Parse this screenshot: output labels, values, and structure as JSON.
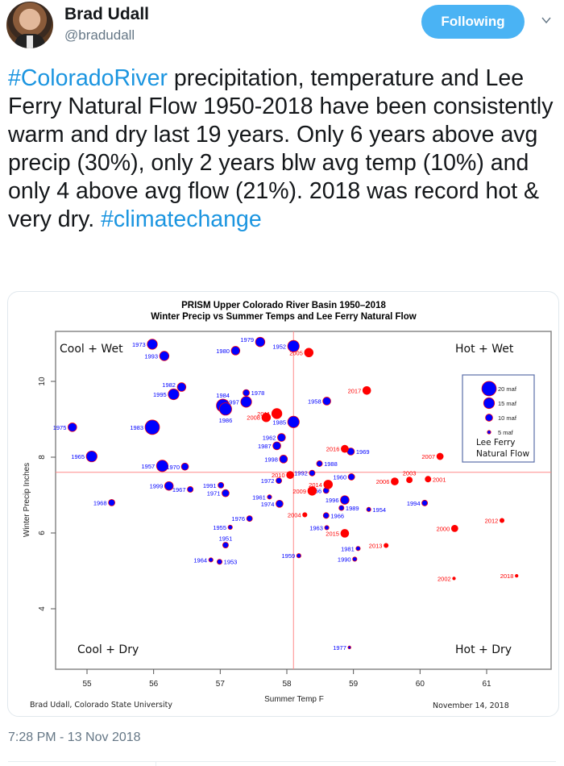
{
  "user": {
    "name": "Brad Udall",
    "handle": "@bradudall",
    "follow_button": "Following",
    "menu_icon": "chevron-down-icon"
  },
  "tweet": {
    "segments": [
      {
        "text": "#ColoradoRiver",
        "type": "hashtag"
      },
      {
        "text": " precipitation, temperature and Lee Ferry Natural Flow 1950-2018 have been consistently warm and dry last 19 years. Only 6 years above avg precip (30%), only 2 years blw avg temp (10%) and only 4 above avg flow (21%). 2018 was record hot & very dry.  ",
        "type": "text"
      },
      {
        "text": "#climatechange",
        "type": "hashtag"
      }
    ],
    "timestamp": "7:28 PM - 13 Nov 2018"
  },
  "colors": {
    "hashtag": "#1b95e0",
    "follow_bg": "#4ab3f4",
    "pre2000": "#0000ff",
    "post2000": "#ff0000",
    "mean_line": "#ff8a8a"
  },
  "chart_data": {
    "type": "scatter",
    "title": "PRISM  Upper Colorado River Basin 1950–2018",
    "subtitle": "Winter Precip vs Summer Temps and Lee Ferry Natural Flow",
    "xlabel": "Summer Temp F",
    "ylabel": "Winter Precip Inches",
    "xlim": [
      54.4,
      61.5
    ],
    "ylim": [
      3.15,
      11.2
    ],
    "xticks": [
      55,
      56,
      57,
      58,
      59,
      60,
      61
    ],
    "yticks": [
      4,
      6,
      8,
      10
    ],
    "mean_x": 58.1,
    "mean_y": 7.6,
    "grid": false,
    "quadrant_labels": {
      "top_left": "Cool + Wet",
      "top_right": "Hot + Wet",
      "bottom_left": "Cool + Dry",
      "bottom_right": "Hot + Dry"
    },
    "legend": {
      "placement": "right",
      "entries": [
        {
          "label": "20 maf",
          "flow": 20
        },
        {
          "label": "15 maf",
          "flow": 15
        },
        {
          "label": "10 maf",
          "flow": 10
        },
        {
          "label": "5 maf",
          "flow": 5
        }
      ],
      "caption_line1": "Lee Ferry",
      "caption_line2": "Natural Flow"
    },
    "footer_left": "Brad Udall, Colorado State University",
    "footer_right": "November 14, 2018",
    "series": [
      {
        "name": "1950-1999",
        "color": "#0000ff",
        "points": [
          {
            "year": "1973",
            "x": 55.98,
            "y": 10.98,
            "flow": 14,
            "label_side": "left"
          },
          {
            "year": "1993",
            "x": 56.16,
            "y": 10.67,
            "flow": 13,
            "label_side": "left"
          },
          {
            "year": "1980",
            "x": 57.23,
            "y": 10.81,
            "flow": 12,
            "label_side": "left"
          },
          {
            "year": "1979",
            "x": 57.6,
            "y": 11.04,
            "flow": 13,
            "label_side": "left-up"
          },
          {
            "year": "1952",
            "x": 58.1,
            "y": 10.93,
            "flow": 16,
            "label_side": "left"
          },
          {
            "year": "1982",
            "x": 56.42,
            "y": 9.85,
            "flow": 12,
            "label_side": "left-up"
          },
          {
            "year": "1995",
            "x": 56.3,
            "y": 9.66,
            "flow": 15,
            "label_side": "left"
          },
          {
            "year": "1978",
            "x": 57.39,
            "y": 9.7,
            "flow": 9,
            "label_side": "right"
          },
          {
            "year": "1997",
            "x": 57.39,
            "y": 9.46,
            "flow": 15,
            "label_side": "left"
          },
          {
            "year": "1984",
            "x": 57.04,
            "y": 9.36,
            "flow": 18,
            "label_side": "up"
          },
          {
            "year": "1986",
            "x": 57.08,
            "y": 9.27,
            "flow": 17,
            "label_side": "down"
          },
          {
            "year": "1958",
            "x": 58.6,
            "y": 9.48,
            "flow": 11,
            "label_side": "left"
          },
          {
            "year": "1985",
            "x": 58.1,
            "y": 8.93,
            "flow": 16,
            "label_side": "left"
          },
          {
            "year": "1975",
            "x": 54.78,
            "y": 8.79,
            "flow": 12,
            "label_side": "left"
          },
          {
            "year": "1983",
            "x": 55.98,
            "y": 8.79,
            "flow": 20,
            "label_side": "left"
          },
          {
            "year": "1962",
            "x": 57.92,
            "y": 8.52,
            "flow": 11,
            "label_side": "left"
          },
          {
            "year": "1987",
            "x": 57.85,
            "y": 8.3,
            "flow": 11,
            "label_side": "left"
          },
          {
            "year": "1998",
            "x": 57.95,
            "y": 7.95,
            "flow": 11,
            "label_side": "left"
          },
          {
            "year": "1969",
            "x": 58.96,
            "y": 8.15,
            "flow": 10,
            "label_side": "right"
          },
          {
            "year": "1988",
            "x": 58.49,
            "y": 7.83,
            "flow": 8,
            "label_side": "right"
          },
          {
            "year": "1965",
            "x": 55.07,
            "y": 8.02,
            "flow": 15,
            "label_side": "left"
          },
          {
            "year": "1957",
            "x": 56.13,
            "y": 7.77,
            "flow": 16,
            "label_side": "left"
          },
          {
            "year": "1970",
            "x": 56.47,
            "y": 7.75,
            "flow": 10,
            "label_side": "left"
          },
          {
            "year": "1992",
            "x": 58.38,
            "y": 7.58,
            "flow": 8,
            "label_side": "left"
          },
          {
            "year": "1960",
            "x": 58.97,
            "y": 7.48,
            "flow": 9,
            "label_side": "left"
          },
          {
            "year": "1972",
            "x": 57.88,
            "y": 7.38,
            "flow": 8,
            "label_side": "left"
          },
          {
            "year": "1991",
            "x": 57.01,
            "y": 7.26,
            "flow": 8,
            "label_side": "left"
          },
          {
            "year": "1999",
            "x": 56.23,
            "y": 7.24,
            "flow": 12,
            "label_side": "left"
          },
          {
            "year": "1967",
            "x": 56.55,
            "y": 7.15,
            "flow": 8,
            "label_side": "left"
          },
          {
            "year": "1971",
            "x": 57.08,
            "y": 7.05,
            "flow": 10,
            "label_side": "left"
          },
          {
            "year": "1956",
            "x": 58.59,
            "y": 7.12,
            "flow": 8,
            "label_side": "left"
          },
          {
            "year": "1961",
            "x": 57.74,
            "y": 6.95,
            "flow": 6,
            "label_side": "left"
          },
          {
            "year": "1996",
            "x": 58.87,
            "y": 6.87,
            "flow": 12,
            "label_side": "left"
          },
          {
            "year": "1994",
            "x": 60.07,
            "y": 6.79,
            "flow": 8,
            "label_side": "left"
          },
          {
            "year": "1968",
            "x": 55.37,
            "y": 6.8,
            "flow": 9,
            "label_side": "left"
          },
          {
            "year": "1974",
            "x": 57.89,
            "y": 6.77,
            "flow": 10,
            "label_side": "left"
          },
          {
            "year": "1989",
            "x": 58.82,
            "y": 6.66,
            "flow": 7,
            "label_side": "right"
          },
          {
            "year": "1954",
            "x": 59.23,
            "y": 6.62,
            "flow": 6,
            "label_side": "right"
          },
          {
            "year": "1966",
            "x": 58.59,
            "y": 6.46,
            "flow": 8,
            "label_side": "right"
          },
          {
            "year": "1976",
            "x": 57.44,
            "y": 6.38,
            "flow": 8,
            "label_side": "left"
          },
          {
            "year": "1963",
            "x": 58.6,
            "y": 6.14,
            "flow": 6,
            "label_side": "left"
          },
          {
            "year": "1955",
            "x": 57.15,
            "y": 6.15,
            "flow": 6,
            "label_side": "left"
          },
          {
            "year": "1951",
            "x": 57.08,
            "y": 5.68,
            "flow": 8,
            "label_side": "up"
          },
          {
            "year": "1981",
            "x": 59.07,
            "y": 5.59,
            "flow": 6,
            "label_side": "left"
          },
          {
            "year": "1959",
            "x": 58.18,
            "y": 5.4,
            "flow": 6,
            "label_side": "left"
          },
          {
            "year": "1990",
            "x": 59.02,
            "y": 5.31,
            "flow": 6,
            "label_side": "left"
          },
          {
            "year": "1964",
            "x": 56.86,
            "y": 5.29,
            "flow": 6,
            "label_side": "left"
          },
          {
            "year": "1953",
            "x": 56.99,
            "y": 5.24,
            "flow": 7,
            "label_side": "right"
          },
          {
            "year": "1977",
            "x": 58.94,
            "y": 2.98,
            "flow": 4,
            "label_side": "left"
          }
        ]
      },
      {
        "name": "2000-2018",
        "color": "#ff0000",
        "points": [
          {
            "year": "2005",
            "x": 58.33,
            "y": 10.76,
            "flow": 12,
            "label_side": "left"
          },
          {
            "year": "2017",
            "x": 59.2,
            "y": 9.76,
            "flow": 11,
            "label_side": "left"
          },
          {
            "year": "2011",
            "x": 57.85,
            "y": 9.15,
            "flow": 14,
            "label_side": "left"
          },
          {
            "year": "2008",
            "x": 57.69,
            "y": 9.05,
            "flow": 12,
            "label_side": "left"
          },
          {
            "year": "2016",
            "x": 58.87,
            "y": 8.22,
            "flow": 10,
            "label_side": "left"
          },
          {
            "year": "2007",
            "x": 60.3,
            "y": 8.02,
            "flow": 9,
            "label_side": "left"
          },
          {
            "year": "2010",
            "x": 58.05,
            "y": 7.53,
            "flow": 10,
            "label_side": "left"
          },
          {
            "year": "2003",
            "x": 59.84,
            "y": 7.4,
            "flow": 8,
            "label_side": "up"
          },
          {
            "year": "2001",
            "x": 60.12,
            "y": 7.42,
            "flow": 8,
            "label_side": "right"
          },
          {
            "year": "2006",
            "x": 59.62,
            "y": 7.36,
            "flow": 10,
            "label_side": "left"
          },
          {
            "year": "2014",
            "x": 58.62,
            "y": 7.28,
            "flow": 12,
            "label_side": "left"
          },
          {
            "year": "2009",
            "x": 58.38,
            "y": 7.11,
            "flow": 12,
            "label_side": "left"
          },
          {
            "year": "2004",
            "x": 58.27,
            "y": 6.48,
            "flow": 6,
            "label_side": "left"
          },
          {
            "year": "2012",
            "x": 61.23,
            "y": 6.33,
            "flow": 6,
            "label_side": "left"
          },
          {
            "year": "2000",
            "x": 60.52,
            "y": 6.12,
            "flow": 9,
            "label_side": "left"
          },
          {
            "year": "2015",
            "x": 58.87,
            "y": 5.99,
            "flow": 11,
            "label_side": "left"
          },
          {
            "year": "2013",
            "x": 59.49,
            "y": 5.67,
            "flow": 6,
            "label_side": "left"
          },
          {
            "year": "2018",
            "x": 61.45,
            "y": 4.87,
            "flow": 4,
            "label_side": "left"
          },
          {
            "year": "2002",
            "x": 60.51,
            "y": 4.8,
            "flow": 4,
            "label_side": "left"
          }
        ]
      }
    ]
  }
}
